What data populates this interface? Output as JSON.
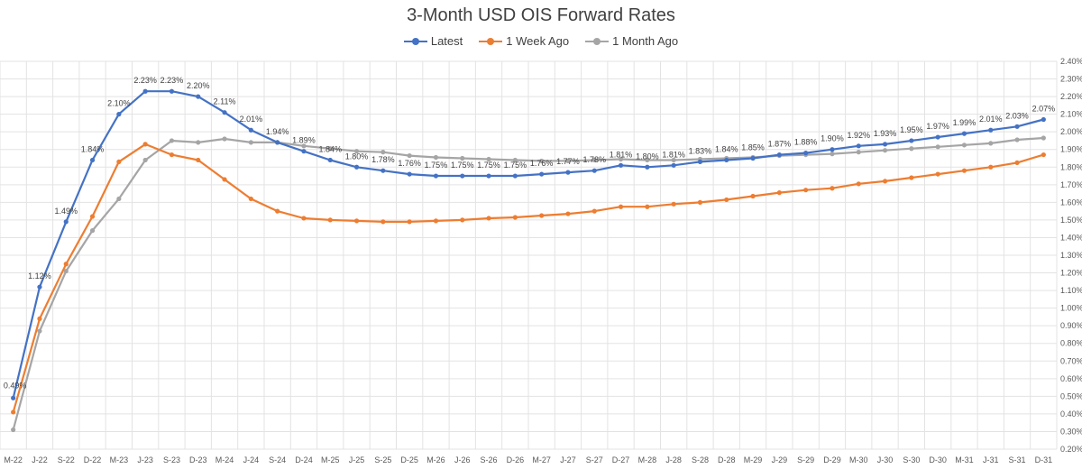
{
  "chart_data": {
    "type": "line",
    "title": "3-Month USD OIS Forward Rates",
    "xlabel": "",
    "ylabel": "",
    "ylim": [
      0.2,
      2.4
    ],
    "y_ticks": [
      "0.20%",
      "0.30%",
      "0.40%",
      "0.50%",
      "0.60%",
      "0.70%",
      "0.80%",
      "0.90%",
      "1.00%",
      "1.10%",
      "1.20%",
      "1.30%",
      "1.40%",
      "1.50%",
      "1.60%",
      "1.70%",
      "1.80%",
      "1.90%",
      "2.00%",
      "2.10%",
      "2.20%",
      "2.30%",
      "2.40%"
    ],
    "y_axis_position": "right",
    "legend_position": "top",
    "grid": true,
    "categories": [
      "M-22",
      "J-22",
      "S-22",
      "D-22",
      "M-23",
      "J-23",
      "S-23",
      "D-23",
      "M-24",
      "J-24",
      "S-24",
      "D-24",
      "M-25",
      "J-25",
      "S-25",
      "D-25",
      "M-26",
      "J-26",
      "S-26",
      "D-26",
      "M-27",
      "J-27",
      "S-27",
      "D-27",
      "M-28",
      "J-28",
      "S-28",
      "D-28",
      "M-29",
      "J-29",
      "S-29",
      "D-29",
      "M-30",
      "J-30",
      "S-30",
      "D-30",
      "M-31",
      "J-31",
      "S-31",
      "D-31"
    ],
    "series": [
      {
        "name": "Latest",
        "color": "#4472c4",
        "values": [
          0.49,
          1.12,
          1.49,
          1.84,
          2.1,
          2.23,
          2.23,
          2.2,
          2.11,
          2.01,
          1.94,
          1.89,
          1.84,
          1.8,
          1.78,
          1.76,
          1.75,
          1.75,
          1.75,
          1.75,
          1.76,
          1.77,
          1.78,
          1.81,
          1.8,
          1.81,
          1.83,
          1.84,
          1.85,
          1.87,
          1.88,
          1.9,
          1.92,
          1.93,
          1.95,
          1.97,
          1.99,
          2.01,
          2.03,
          2.07
        ],
        "labels": [
          "0.49%",
          "1.12%",
          "1.49%",
          "1.84%",
          "2.10%",
          "2.23%",
          "2.23%",
          "2.20%",
          "2.11%",
          "2.01%",
          "1.94%",
          "1.89%",
          "1.84%",
          "1.80%",
          "1.78%",
          "1.76%",
          "1.75%",
          "1.75%",
          "1.75%",
          "1.75%",
          "1.76%",
          "1.77%",
          "1.78%",
          "1.81%",
          "1.80%",
          "1.81%",
          "1.83%",
          "1.84%",
          "1.85%",
          "1.87%",
          "1.88%",
          "1.90%",
          "1.92%",
          "1.93%",
          "1.95%",
          "1.97%",
          "1.99%",
          "2.01%",
          "2.03%",
          "2.07%"
        ]
      },
      {
        "name": "1 Week Ago",
        "color": "#ed7d31",
        "values": [
          0.41,
          0.94,
          1.25,
          1.52,
          1.83,
          1.93,
          1.87,
          1.84,
          1.73,
          1.62,
          1.55,
          1.51,
          1.5,
          1.495,
          1.49,
          1.49,
          1.495,
          1.5,
          1.51,
          1.515,
          1.525,
          1.535,
          1.55,
          1.575,
          1.575,
          1.59,
          1.6,
          1.615,
          1.635,
          1.655,
          1.67,
          1.68,
          1.705,
          1.72,
          1.74,
          1.76,
          1.78,
          1.8,
          1.825,
          1.87
        ],
        "labels": []
      },
      {
        "name": "1 Month Ago",
        "color": "#a5a5a5",
        "values": [
          0.31,
          0.87,
          1.21,
          1.44,
          1.62,
          1.84,
          1.95,
          1.94,
          1.96,
          1.94,
          1.94,
          1.92,
          1.905,
          1.89,
          1.885,
          1.865,
          1.855,
          1.85,
          1.845,
          1.84,
          1.835,
          1.835,
          1.84,
          1.845,
          1.84,
          1.84,
          1.845,
          1.85,
          1.855,
          1.865,
          1.87,
          1.875,
          1.885,
          1.895,
          1.905,
          1.915,
          1.925,
          1.935,
          1.955,
          1.965
        ],
        "labels": []
      }
    ]
  }
}
